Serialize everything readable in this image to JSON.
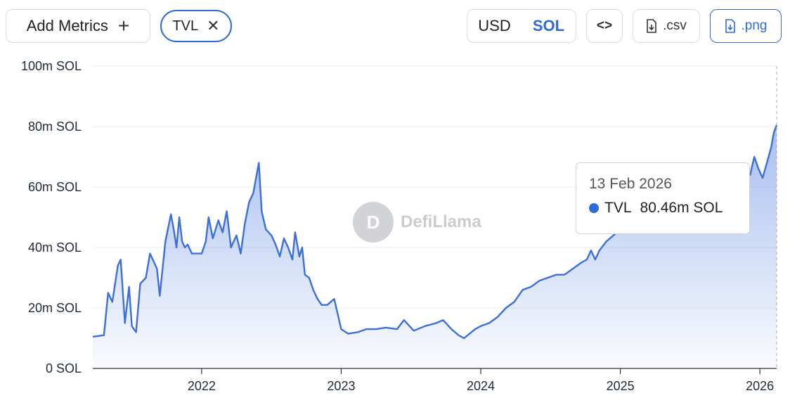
{
  "toolbar": {
    "add_metrics_label": "Add Metrics",
    "add_icon": "plus-icon",
    "metric_chip_label": "TVL",
    "remove_icon": "close-icon",
    "currency_options": [
      "USD",
      "SOL"
    ],
    "currency_selected": "SOL",
    "embed_icon": "code-icon",
    "csv_label": ".csv",
    "png_label": ".png",
    "download_icon": "file-download-icon"
  },
  "watermark": {
    "text": "DefiLlama"
  },
  "tooltip": {
    "date": "13 Feb 2026",
    "series": "TVL",
    "value": "80.46m SOL"
  },
  "colors": {
    "accent": "#2f6bd8",
    "line": "#3c6fdc"
  },
  "chart_data": {
    "type": "area",
    "series": [
      {
        "name": "TVL",
        "unit": "SOL"
      }
    ],
    "y_tick_labels": [
      "0 SOL",
      "20m SOL",
      "40m SOL",
      "60m SOL",
      "80m SOL",
      "100m SOL"
    ],
    "y_ticks": [
      0,
      20,
      40,
      60,
      80,
      100
    ],
    "ylim": [
      0,
      100
    ],
    "x_tick_labels": [
      "2022",
      "2023",
      "2024",
      "2025",
      "2026"
    ],
    "x_ticks": [
      2022,
      2023,
      2024,
      2025,
      2026
    ],
    "xlim": [
      2021.22,
      2026.12
    ],
    "grid": true,
    "points": [
      [
        2021.22,
        10.5
      ],
      [
        2021.3,
        11
      ],
      [
        2021.33,
        25
      ],
      [
        2021.36,
        22
      ],
      [
        2021.4,
        34
      ],
      [
        2021.42,
        36
      ],
      [
        2021.45,
        15
      ],
      [
        2021.48,
        27
      ],
      [
        2021.5,
        14
      ],
      [
        2021.53,
        12
      ],
      [
        2021.56,
        28
      ],
      [
        2021.6,
        30
      ],
      [
        2021.63,
        38
      ],
      [
        2021.66,
        35
      ],
      [
        2021.68,
        33
      ],
      [
        2021.7,
        24
      ],
      [
        2021.74,
        42
      ],
      [
        2021.78,
        51
      ],
      [
        2021.8,
        46
      ],
      [
        2021.82,
        40
      ],
      [
        2021.84,
        50
      ],
      [
        2021.86,
        42
      ],
      [
        2021.88,
        40
      ],
      [
        2021.9,
        41
      ],
      [
        2021.93,
        38
      ],
      [
        2021.96,
        38
      ],
      [
        2022.0,
        38
      ],
      [
        2022.03,
        42
      ],
      [
        2022.05,
        50
      ],
      [
        2022.08,
        43
      ],
      [
        2022.12,
        49
      ],
      [
        2022.15,
        45
      ],
      [
        2022.18,
        52
      ],
      [
        2022.21,
        40
      ],
      [
        2022.25,
        44
      ],
      [
        2022.28,
        38
      ],
      [
        2022.31,
        48
      ],
      [
        2022.34,
        55
      ],
      [
        2022.37,
        58
      ],
      [
        2022.39,
        63
      ],
      [
        2022.41,
        68
      ],
      [
        2022.43,
        52
      ],
      [
        2022.46,
        46
      ],
      [
        2022.5,
        44
      ],
      [
        2022.53,
        41
      ],
      [
        2022.56,
        37
      ],
      [
        2022.59,
        43
      ],
      [
        2022.62,
        40
      ],
      [
        2022.65,
        36
      ],
      [
        2022.67,
        45
      ],
      [
        2022.7,
        37
      ],
      [
        2022.72,
        40
      ],
      [
        2022.74,
        31
      ],
      [
        2022.77,
        30
      ],
      [
        2022.8,
        26
      ],
      [
        2022.83,
        23
      ],
      [
        2022.86,
        21
      ],
      [
        2022.9,
        21
      ],
      [
        2022.95,
        23
      ],
      [
        2023.0,
        13
      ],
      [
        2023.05,
        11.5
      ],
      [
        2023.12,
        12
      ],
      [
        2023.18,
        13
      ],
      [
        2023.25,
        13
      ],
      [
        2023.32,
        13.5
      ],
      [
        2023.4,
        13
      ],
      [
        2023.45,
        16
      ],
      [
        2023.52,
        12.5
      ],
      [
        2023.6,
        14
      ],
      [
        2023.68,
        15
      ],
      [
        2023.73,
        16
      ],
      [
        2023.79,
        13
      ],
      [
        2023.84,
        11
      ],
      [
        2023.88,
        10
      ],
      [
        2023.92,
        11.5
      ],
      [
        2023.96,
        13
      ],
      [
        2024.0,
        14
      ],
      [
        2024.06,
        15
      ],
      [
        2024.12,
        17
      ],
      [
        2024.18,
        20
      ],
      [
        2024.24,
        22
      ],
      [
        2024.3,
        26
      ],
      [
        2024.36,
        27
      ],
      [
        2024.42,
        29
      ],
      [
        2024.48,
        30
      ],
      [
        2024.54,
        31
      ],
      [
        2024.6,
        31
      ],
      [
        2024.66,
        33
      ],
      [
        2024.72,
        35
      ],
      [
        2024.76,
        36
      ],
      [
        2024.79,
        39
      ],
      [
        2024.82,
        36
      ],
      [
        2024.85,
        39
      ],
      [
        2024.9,
        42
      ],
      [
        2024.95,
        44
      ],
      [
        2025.0,
        46
      ],
      [
        2025.06,
        48
      ],
      [
        2025.14,
        50
      ],
      [
        2025.22,
        52
      ],
      [
        2025.3,
        54
      ],
      [
        2025.4,
        56
      ],
      [
        2025.5,
        58
      ],
      [
        2025.6,
        60
      ],
      [
        2025.7,
        62
      ],
      [
        2025.8,
        64
      ],
      [
        2025.88,
        67
      ],
      [
        2025.93,
        64
      ],
      [
        2025.96,
        70
      ],
      [
        2025.99,
        66
      ],
      [
        2026.02,
        63
      ],
      [
        2026.05,
        68
      ],
      [
        2026.08,
        73
      ],
      [
        2026.1,
        78
      ],
      [
        2026.12,
        80.46
      ]
    ]
  }
}
